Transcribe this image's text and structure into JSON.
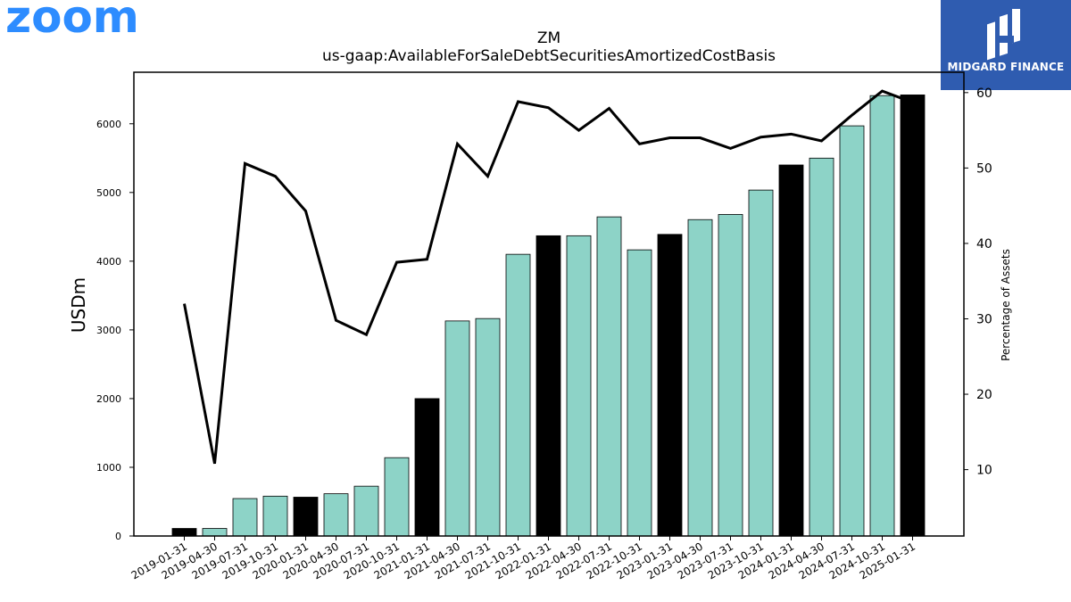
{
  "header": {
    "logo_text": "zoom",
    "brand_name": "MIDGARD FINANCE",
    "brand_color": "#2f5cb0",
    "logo_color": "#2d8cff"
  },
  "chart_data": {
    "type": "bar",
    "title": "ZM",
    "subtitle": "us-gaap:AvailableForSaleDebtSecuritiesAmortizedCostBasis",
    "ylabel": "USDm",
    "y2label": "Percentage of Assets",
    "ylim": [
      0,
      6750
    ],
    "y2lim": [
      1.2,
      62.7
    ],
    "yticks": [
      0,
      1000,
      2000,
      3000,
      4000,
      5000,
      6000
    ],
    "y2ticks": [
      10,
      20,
      30,
      40,
      50,
      60
    ],
    "categories": [
      "2019-01-31",
      "2019-04-30",
      "2019-07-31",
      "2019-10-31",
      "2020-01-31",
      "2020-04-30",
      "2020-07-31",
      "2020-10-31",
      "2021-01-31",
      "2021-04-30",
      "2021-07-31",
      "2021-10-31",
      "2022-01-31",
      "2022-04-30",
      "2022-07-31",
      "2022-10-31",
      "2023-01-31",
      "2023-04-30",
      "2023-07-31",
      "2023-10-31",
      "2024-01-31",
      "2024-04-30",
      "2024-07-31",
      "2024-10-31",
      "2025-01-31"
    ],
    "series": [
      {
        "name": "",
        "kind": "bar",
        "values": [
          110,
          110,
          545,
          580,
          565,
          615,
          725,
          1140,
          2000,
          3130,
          3165,
          4100,
          4370,
          4370,
          4645,
          4165,
          4390,
          4605,
          4680,
          5035,
          5400,
          5500,
          5970,
          6410,
          6420
        ],
        "colors": [
          "#000000",
          "#8dd3c7",
          "#8dd3c7",
          "#8dd3c7",
          "#000000",
          "#8dd3c7",
          "#8dd3c7",
          "#8dd3c7",
          "#000000",
          "#8dd3c7",
          "#8dd3c7",
          "#8dd3c7",
          "#000000",
          "#8dd3c7",
          "#8dd3c7",
          "#8dd3c7",
          "#000000",
          "#8dd3c7",
          "#8dd3c7",
          "#8dd3c7",
          "#000000",
          "#8dd3c7",
          "#8dd3c7",
          "#8dd3c7",
          "#000000"
        ]
      },
      {
        "name": "",
        "kind": "line",
        "axis": "right",
        "color": "#000000",
        "values": [
          32.0,
          10.8,
          50.6,
          48.9,
          44.3,
          29.8,
          27.9,
          37.5,
          37.9,
          53.2,
          48.9,
          58.8,
          58.0,
          55.0,
          57.9,
          53.2,
          54.0,
          54.0,
          52.6,
          54.1,
          54.5,
          53.6,
          57.0,
          60.2,
          58.7
        ]
      }
    ]
  }
}
